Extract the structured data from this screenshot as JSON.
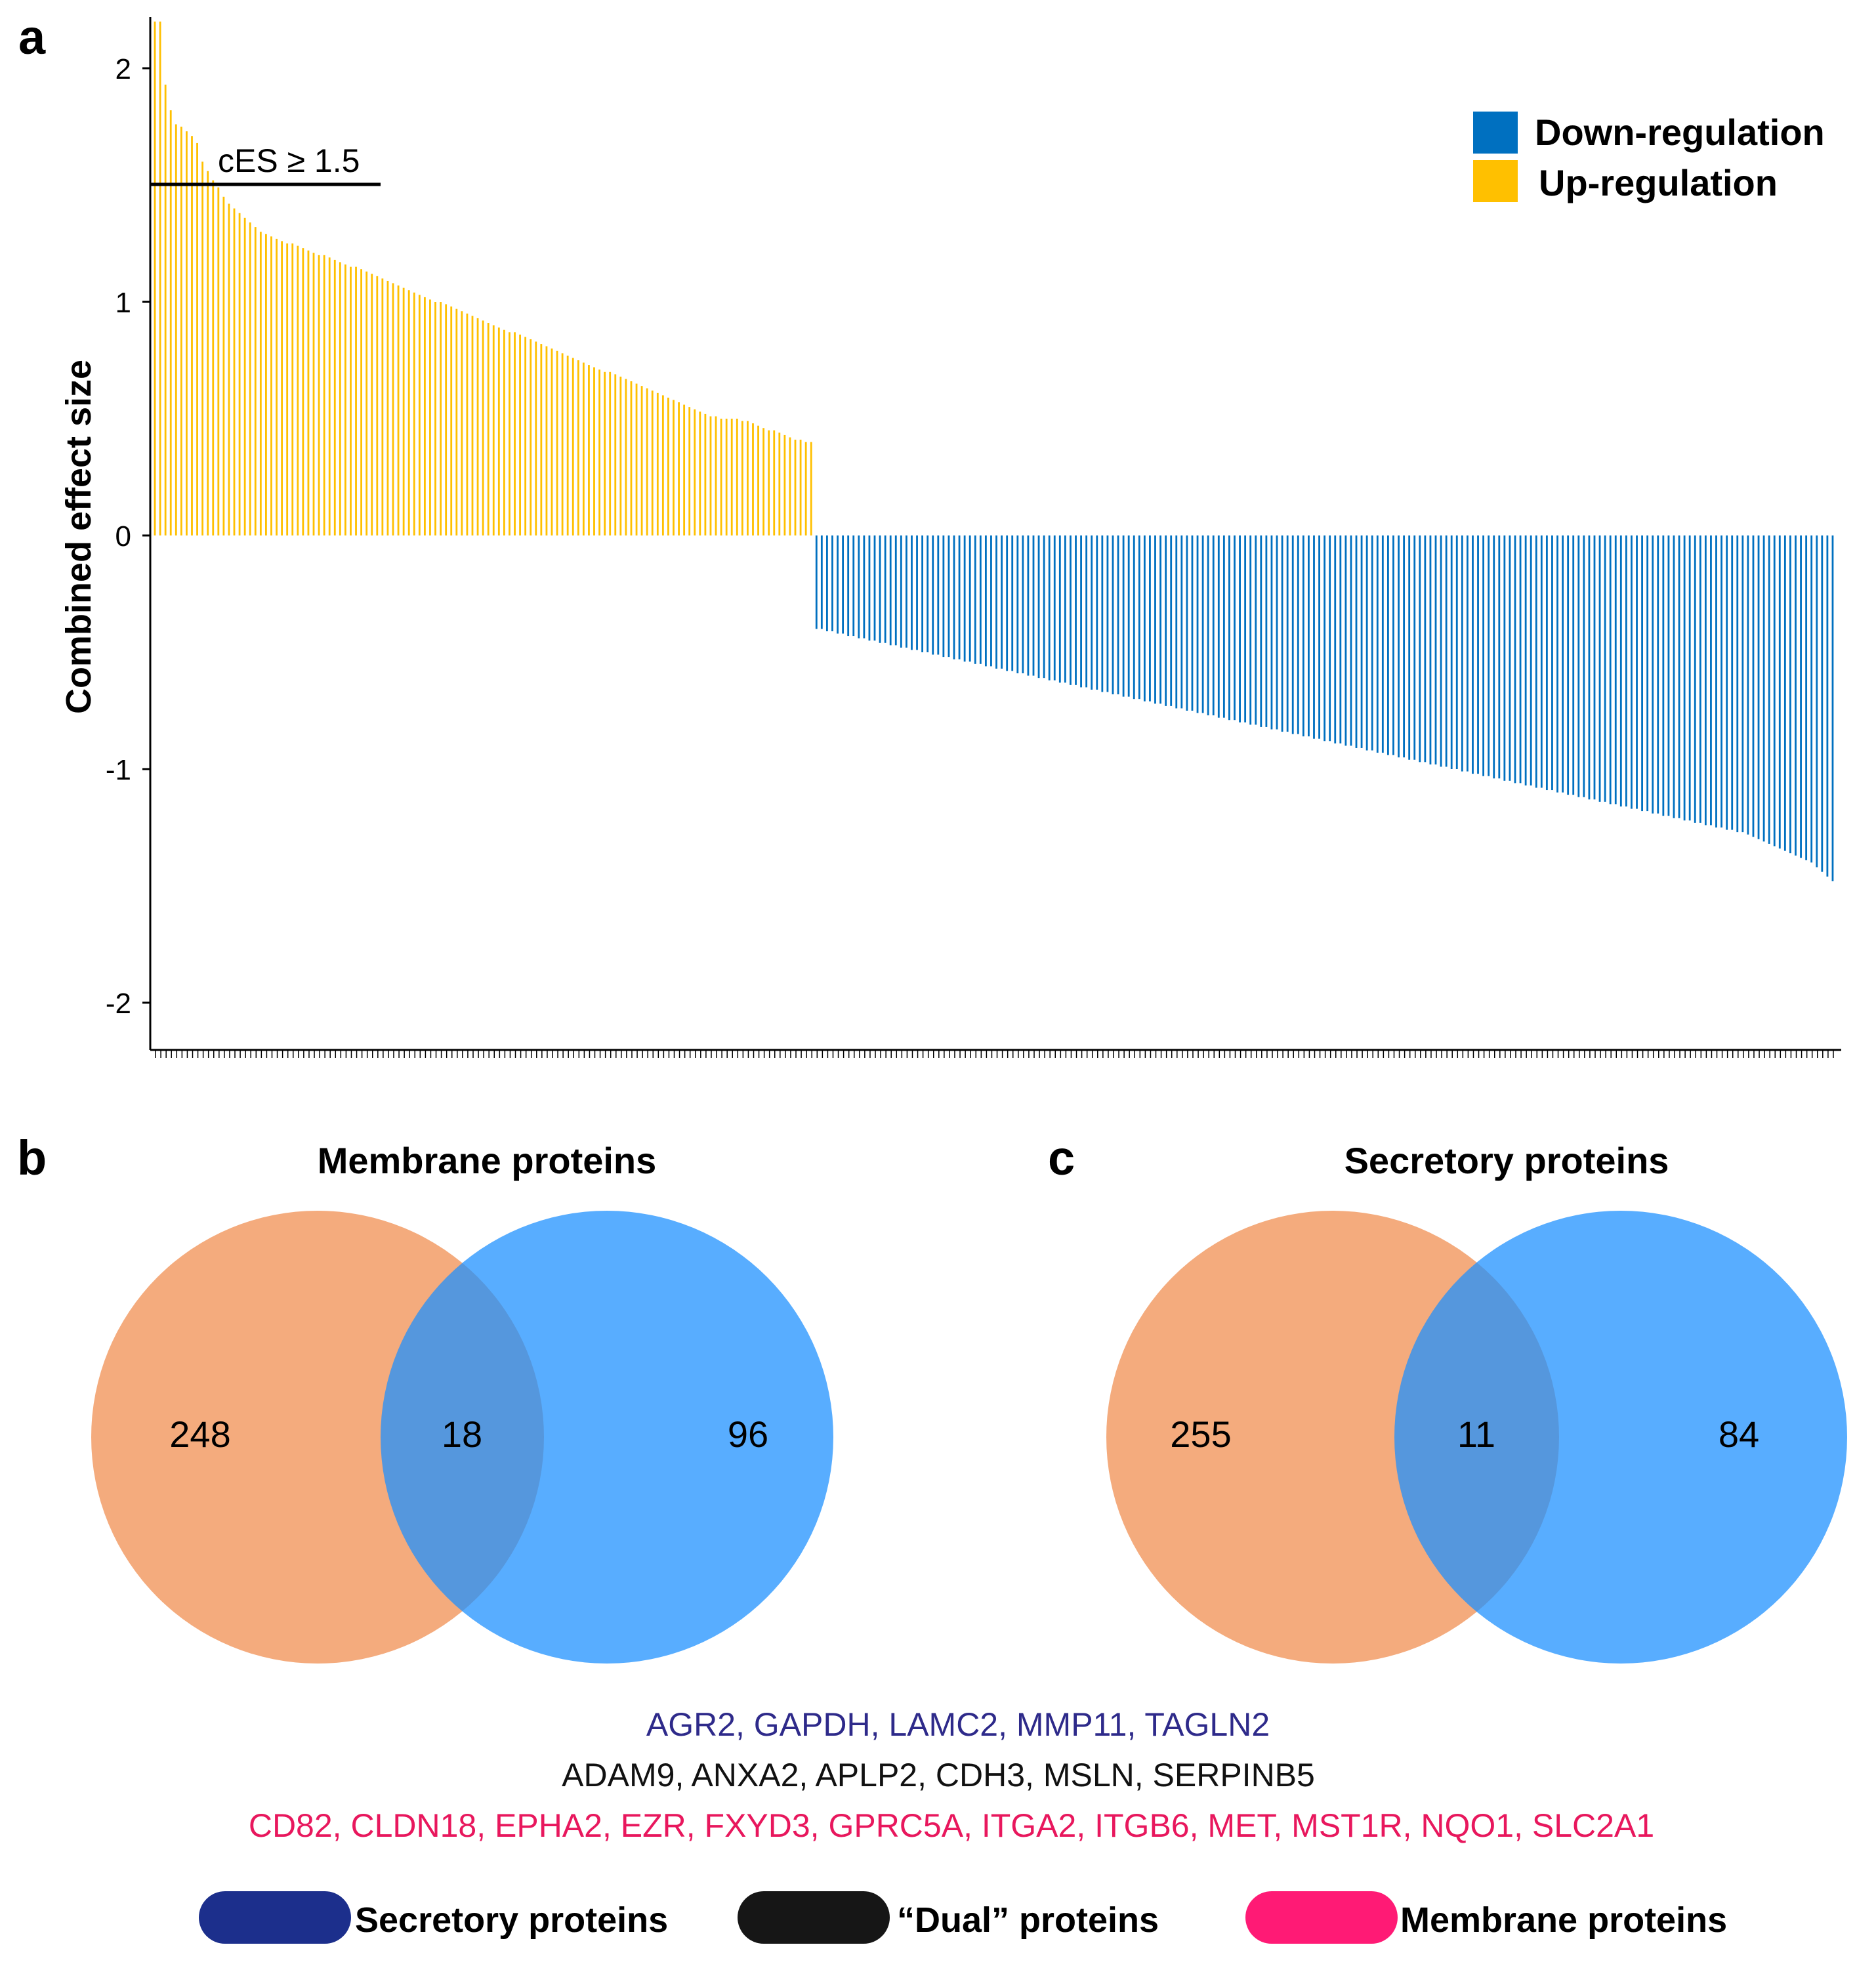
{
  "chart_data": [
    {
      "panel": "a",
      "type": "bar",
      "title": "",
      "xlabel": "",
      "ylabel": "Combined effect size",
      "ylim": [
        -2.2,
        2.2
      ],
      "yticks": [
        2,
        1,
        0,
        -1,
        -2
      ],
      "ytick_labels": [
        "2",
        "1",
        "0",
        "-1",
        "-2"
      ],
      "grid": false,
      "legend_position": "top-right",
      "threshold": {
        "label": "cES ≥ 1.5",
        "value": 1.5
      },
      "series": [
        {
          "name": "Up-regulation",
          "color": "#ffc000",
          "values": [
            2.2,
            2.2,
            1.93,
            1.82,
            1.76,
            1.75,
            1.73,
            1.71,
            1.68,
            1.6,
            1.56,
            1.52,
            1.49,
            1.45,
            1.42,
            1.4,
            1.38,
            1.36,
            1.34,
            1.32,
            1.3,
            1.29,
            1.28,
            1.27,
            1.26,
            1.25,
            1.25,
            1.24,
            1.23,
            1.22,
            1.21,
            1.2,
            1.2,
            1.19,
            1.18,
            1.17,
            1.16,
            1.15,
            1.15,
            1.14,
            1.13,
            1.12,
            1.11,
            1.1,
            1.09,
            1.08,
            1.07,
            1.06,
            1.05,
            1.04,
            1.03,
            1.02,
            1.01,
            1.0,
            1.0,
            0.99,
            0.98,
            0.97,
            0.96,
            0.95,
            0.94,
            0.93,
            0.92,
            0.91,
            0.9,
            0.89,
            0.88,
            0.87,
            0.87,
            0.86,
            0.85,
            0.84,
            0.83,
            0.82,
            0.81,
            0.8,
            0.79,
            0.78,
            0.77,
            0.76,
            0.75,
            0.74,
            0.73,
            0.72,
            0.71,
            0.7,
            0.7,
            0.69,
            0.68,
            0.67,
            0.66,
            0.65,
            0.64,
            0.63,
            0.62,
            0.61,
            0.6,
            0.59,
            0.58,
            0.57,
            0.56,
            0.55,
            0.54,
            0.53,
            0.52,
            0.51,
            0.51,
            0.5,
            0.5,
            0.5,
            0.5,
            0.49,
            0.49,
            0.48,
            0.47,
            0.46,
            0.45,
            0.45,
            0.44,
            0.43,
            0.42,
            0.41,
            0.41,
            0.4,
            0.4
          ]
        },
        {
          "name": "Down-regulation",
          "color": "#0070c0",
          "values": [
            -0.4,
            -0.4,
            -0.41,
            -0.41,
            -0.42,
            -0.42,
            -0.43,
            -0.43,
            -0.44,
            -0.44,
            -0.45,
            -0.45,
            -0.46,
            -0.46,
            -0.47,
            -0.47,
            -0.48,
            -0.48,
            -0.49,
            -0.49,
            -0.5,
            -0.5,
            -0.51,
            -0.51,
            -0.52,
            -0.52,
            -0.53,
            -0.53,
            -0.54,
            -0.54,
            -0.55,
            -0.55,
            -0.56,
            -0.56,
            -0.57,
            -0.57,
            -0.58,
            -0.58,
            -0.59,
            -0.59,
            -0.6,
            -0.6,
            -0.61,
            -0.61,
            -0.62,
            -0.62,
            -0.63,
            -0.63,
            -0.64,
            -0.64,
            -0.65,
            -0.65,
            -0.66,
            -0.66,
            -0.67,
            -0.67,
            -0.68,
            -0.68,
            -0.69,
            -0.69,
            -0.7,
            -0.7,
            -0.71,
            -0.71,
            -0.72,
            -0.72,
            -0.73,
            -0.73,
            -0.74,
            -0.74,
            -0.75,
            -0.75,
            -0.76,
            -0.76,
            -0.77,
            -0.77,
            -0.78,
            -0.78,
            -0.79,
            -0.79,
            -0.8,
            -0.8,
            -0.81,
            -0.81,
            -0.82,
            -0.82,
            -0.83,
            -0.83,
            -0.84,
            -0.84,
            -0.85,
            -0.85,
            -0.86,
            -0.86,
            -0.87,
            -0.87,
            -0.88,
            -0.88,
            -0.89,
            -0.89,
            -0.9,
            -0.9,
            -0.91,
            -0.91,
            -0.92,
            -0.92,
            -0.93,
            -0.93,
            -0.94,
            -0.94,
            -0.95,
            -0.95,
            -0.96,
            -0.96,
            -0.97,
            -0.97,
            -0.98,
            -0.98,
            -0.99,
            -0.99,
            -1.0,
            -1.0,
            -1.01,
            -1.01,
            -1.02,
            -1.02,
            -1.03,
            -1.03,
            -1.04,
            -1.04,
            -1.05,
            -1.05,
            -1.06,
            -1.06,
            -1.07,
            -1.07,
            -1.08,
            -1.08,
            -1.09,
            -1.09,
            -1.1,
            -1.1,
            -1.11,
            -1.11,
            -1.12,
            -1.12,
            -1.13,
            -1.13,
            -1.14,
            -1.14,
            -1.15,
            -1.15,
            -1.16,
            -1.16,
            -1.17,
            -1.17,
            -1.18,
            -1.18,
            -1.19,
            -1.19,
            -1.2,
            -1.2,
            -1.21,
            -1.21,
            -1.22,
            -1.22,
            -1.23,
            -1.23,
            -1.24,
            -1.24,
            -1.25,
            -1.25,
            -1.26,
            -1.26,
            -1.27,
            -1.27,
            -1.28,
            -1.29,
            -1.3,
            -1.31,
            -1.32,
            -1.33,
            -1.34,
            -1.35,
            -1.36,
            -1.37,
            -1.38,
            -1.39,
            -1.4,
            -1.42,
            -1.44,
            -1.46,
            -1.48
          ]
        }
      ]
    },
    {
      "panel": "b",
      "type": "venn",
      "title": "Membrane proteins",
      "sets": [
        "left",
        "right"
      ],
      "colors": [
        "#f08a4b",
        "#1e90ff"
      ],
      "counts": {
        "left_only": 248,
        "both": 18,
        "right_only": 96
      }
    },
    {
      "panel": "c",
      "type": "venn",
      "title": "Secretory proteins",
      "sets": [
        "left",
        "right"
      ],
      "colors": [
        "#f08a4b",
        "#1e90ff"
      ],
      "counts": {
        "left_only": 255,
        "both": 11,
        "right_only": 84
      }
    }
  ],
  "labels": {
    "panel_a": "a",
    "panel_b": "b",
    "panel_c": "c"
  },
  "genes": {
    "secretory": "AGR2, GAPDH, LAMC2, MMP11, TAGLN2",
    "dual": "ADAM9, ANXA2, APLP2, CDH3, MSLN, SERPINB5",
    "membrane": "CD82, CLDN18, EPHA2, EZR, FXYD3, GPRC5A, ITGA2, ITGB6, MET, MST1R, NQO1, SLC2A1"
  },
  "gene_colors": {
    "secretory": "#2e2a8a",
    "dual": "#111111",
    "membrane": "#e8175d"
  },
  "key": [
    {
      "label": "Secretory proteins",
      "color": "#1c2f8c"
    },
    {
      "label": "“Dual” proteins",
      "color": "#161616"
    },
    {
      "label": "Membrane proteins",
      "color": "#ff1a75"
    }
  ]
}
